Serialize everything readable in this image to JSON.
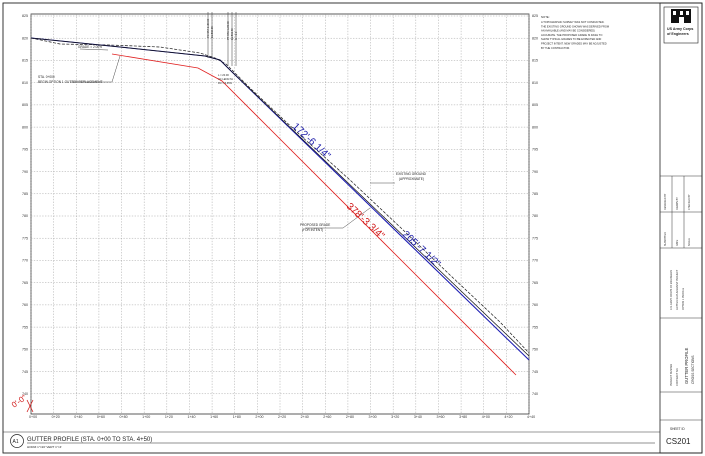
{
  "profile": {
    "y_axis_ticks": [
      "825",
      "820",
      "815",
      "810",
      "805",
      "800",
      "795",
      "790",
      "785",
      "780",
      "775",
      "770",
      "765",
      "760",
      "755",
      "750",
      "745",
      "740"
    ],
    "x_axis_ticks": [
      "0+00",
      "0+20",
      "0+40",
      "0+60",
      "0+80",
      "1+00",
      "1+20",
      "1+40",
      "1+60",
      "1+80",
      "2+00",
      "2+20",
      "2+40",
      "2+60",
      "2+80",
      "3+00",
      "3+20",
      "3+40",
      "3+60",
      "3+80",
      "4+00",
      "4+20",
      "4+40"
    ],
    "labels": {
      "grade": "GRADE = 2.00%",
      "sta_line1": "STA. 0+000",
      "sta_line2": "BEGIN OPTION 1 GUTTER REPLACEMENT",
      "existing_line1": "EXISTING GROUND",
      "existing_line2": "(APPROXIMATE)",
      "proposed_line1": "PROPOSED GRADE",
      "proposed_line2": "(FOR INTENT)",
      "slope1": "172'-6 1/4\"",
      "slope2": "205'-7 1/2\"",
      "slope3": "378'-3 3/4\"",
      "left_corner": "0'-0\""
    },
    "colors": {
      "existing": "#1a1a1a",
      "design": "#1f1fb4",
      "proposed": "#e02020",
      "dim": "#1a1aa8",
      "red_dim": "#d01818"
    }
  },
  "title_block": {
    "agency_line1": "US Army Corps",
    "agency_line2": "of Engineers",
    "note_title": "NOTE:",
    "note_lines": [
      "A TOPOGRAPHIC SURVEY WAS NOT CONDUCTED.",
      "THE EXISTING GROUND SHOWN WAS DERIVED FROM",
      "AN AVAILABLE (AND MAY BE CONSIDERED)",
      "ACCURATE. THE PROPOSED GRADE IS DASH TO",
      "SHOW TYPICAL GRADES TO BE EXPECTED AND",
      "PROJECT INTENT. NEW GRADES MAY BE ADJUSTED",
      "BY THE CONTRACTOR."
    ],
    "sheet_title_line1": "GUTTER PROFILE",
    "sheet_title_line2": "CROSS SECTIONS",
    "sheet_label": "SHEET ID",
    "sheet_id": "CS201"
  },
  "footer": {
    "detail_id": "A1",
    "detail_title": "GUTTER PROFILE (STA. 0+00 TO STA. 4+50)",
    "scale": "HORIZ 1\"=20' VERT 1\"=4'"
  }
}
